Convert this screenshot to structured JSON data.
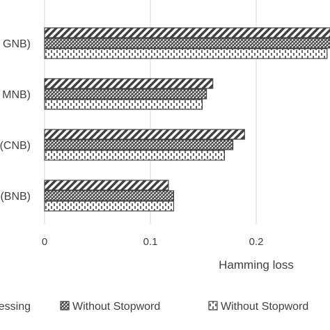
{
  "chart_data": {
    "type": "bar",
    "orientation": "horizontal",
    "categories": [
      "GNB)",
      "MNB)",
      "(CNB)",
      "(BNB)"
    ],
    "series": [
      {
        "name": "essing",
        "pattern": "diagonal",
        "values": [
          0.27,
          0.159,
          0.189,
          0.117
        ]
      },
      {
        "name": "Without Stopword",
        "pattern": "crosshatch",
        "values": [
          0.27,
          0.153,
          0.178,
          0.122
        ]
      },
      {
        "name": "Without Stopword",
        "pattern": "vertical-dash",
        "values": [
          0.267,
          0.149,
          0.17,
          0.122
        ]
      }
    ],
    "xlim": [
      0,
      0.27
    ],
    "xticks": [
      "0",
      "0.1",
      "0.2"
    ],
    "xtick_values": [
      0,
      0.1,
      0.2
    ],
    "xlabel": "Hamming loss",
    "ylabel": "",
    "grid": "vertical",
    "legend_position": "bottom",
    "colors": {
      "bar_stroke": "#404040",
      "grid": "#d9d9d9",
      "text": "#404040"
    }
  }
}
